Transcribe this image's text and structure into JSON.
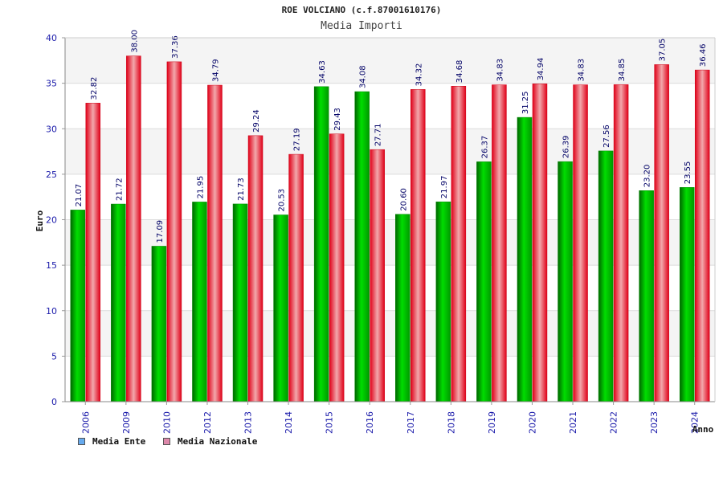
{
  "chart_data": {
    "type": "bar",
    "title": "ROE VOLCIANO (c.f.87001610176)",
    "subtitle": "Media Importi",
    "xlabel": "Anno",
    "ylabel": "Euro",
    "ylim": [
      0,
      40
    ],
    "yticks": [
      0,
      5,
      10,
      15,
      20,
      25,
      30,
      35,
      40
    ],
    "categories": [
      "2006",
      "2009",
      "2010",
      "2012",
      "2013",
      "2014",
      "2015",
      "2016",
      "2017",
      "2018",
      "2019",
      "2020",
      "2021",
      "2022",
      "2023",
      "2024"
    ],
    "series": [
      {
        "name": "Media Ente",
        "color": "#00aa00",
        "values": [
          21.07,
          21.72,
          17.09,
          21.95,
          21.73,
          20.53,
          34.63,
          34.08,
          20.6,
          21.97,
          26.37,
          31.25,
          26.39,
          27.56,
          23.2,
          23.55
        ],
        "labels": [
          "21.07",
          "21.72",
          "17.09",
          "21.95",
          "21.73",
          "20.53",
          "34.63",
          "34.08",
          "20.60",
          "21.97",
          "26.37",
          "31.25",
          "26.39",
          "27.56",
          "23.20",
          "23.55"
        ]
      },
      {
        "name": "Media Nazionale",
        "color": "#e0001a",
        "values": [
          32.82,
          38.0,
          37.36,
          34.79,
          29.24,
          27.19,
          29.43,
          27.71,
          34.32,
          34.68,
          34.83,
          34.94,
          34.83,
          34.85,
          37.05,
          36.46
        ],
        "labels": [
          "32.82",
          "38.00",
          "37.36",
          "34.79",
          "29.24",
          "27.19",
          "29.43",
          "27.71",
          "34.32",
          "34.68",
          "34.83",
          "34.94",
          "34.83",
          "34.85",
          "37.05",
          "36.46"
        ]
      }
    ],
    "legend": {
      "position": "bottom-left",
      "entries": [
        {
          "label": "Media Ente",
          "color": "#66aaee"
        },
        {
          "label": "Media Nazionale",
          "color": "#dd88aa"
        }
      ]
    },
    "grid": true,
    "background_bands": [
      "#f4f4f4",
      "#ffffff"
    ]
  }
}
